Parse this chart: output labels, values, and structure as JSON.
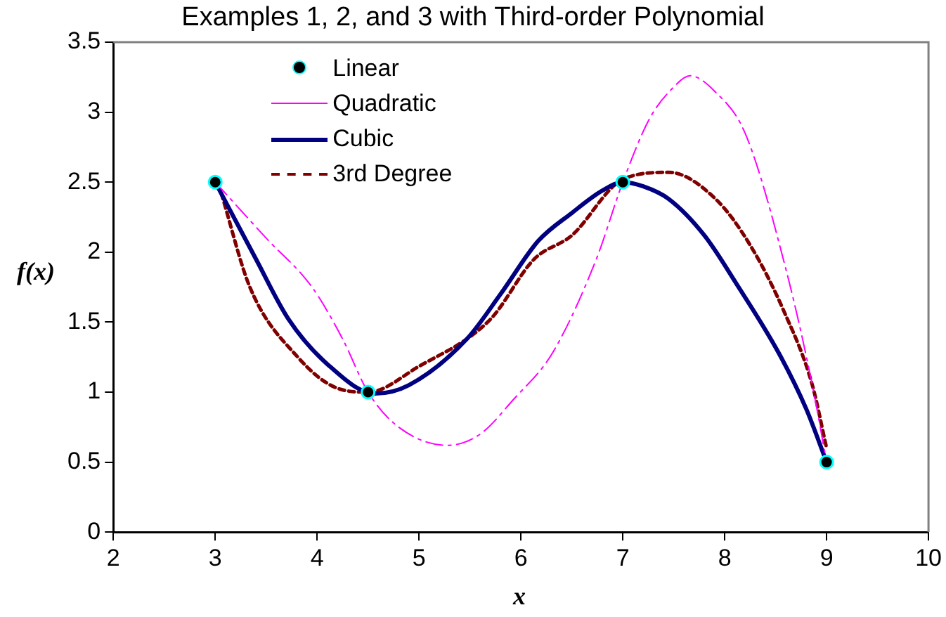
{
  "chart_data": {
    "type": "line",
    "title": "Examples 1, 2, and 3 with Third-order Polynomial",
    "xlabel": "x",
    "ylabel": "f(x)",
    "xlim": [
      2,
      10
    ],
    "xticks": [
      2,
      3,
      4,
      5,
      6,
      7,
      8,
      9,
      10
    ],
    "ylim": [
      0,
      3.5
    ],
    "yticks": [
      0,
      0.5,
      1,
      1.5,
      2,
      2.5,
      3,
      3.5
    ],
    "grid": false,
    "legend": "top left",
    "series": [
      {
        "name": "Linear",
        "type": "scatter",
        "marker": "circle",
        "color": "#000000",
        "x": [
          3,
          4.5,
          7,
          9
        ],
        "values": [
          2.5,
          1,
          2.5,
          0.5
        ]
      },
      {
        "name": "Quadratic",
        "type": "line",
        "marker": "none",
        "line_style": "dashed",
        "color": "#ff00ff",
        "x": [
          3,
          3.5,
          3.95,
          4.25,
          4.5,
          4.8,
          5.28,
          5.6,
          5.93,
          6.31,
          6.74,
          7,
          7.26,
          7.5,
          7.66,
          7.9,
          8.2,
          8.6,
          8.86,
          9
        ],
        "values": [
          2.5,
          2.1,
          1.75,
          1.38,
          1,
          0.75,
          0.62,
          0.7,
          0.95,
          1.28,
          1.95,
          2.5,
          2.95,
          3.18,
          3.26,
          3.15,
          2.85,
          1.88,
          1.05,
          0.5
        ]
      },
      {
        "name": "Cubic",
        "type": "line",
        "marker": "none",
        "line_style": "solid",
        "color": "#000080",
        "x": [
          3,
          3.4,
          3.72,
          4.1,
          4.57,
          4.9,
          5.47,
          5.8,
          6.17,
          6.5,
          6.8,
          7,
          7.2,
          7.45,
          7.8,
          8.11,
          8.53,
          8.8,
          9
        ],
        "values": [
          2.5,
          1.95,
          1.52,
          1.2,
          0.99,
          1.05,
          1.38,
          1.7,
          2.08,
          2.28,
          2.44,
          2.5,
          2.47,
          2.38,
          2.12,
          1.78,
          1.28,
          0.88,
          0.5
        ]
      },
      {
        "name": "3rd Degree",
        "type": "line",
        "marker": "none",
        "line_style": "dotted",
        "color": "#800000",
        "x": [
          3.06,
          3.34,
          3.81,
          4.19,
          4.5,
          4.99,
          5.7,
          6.13,
          6.5,
          7,
          7.45,
          7.91,
          8.25,
          8.58,
          8.86,
          9
        ],
        "values": [
          2.42,
          1.75,
          1.25,
          1.03,
          1,
          1.18,
          1.52,
          1.95,
          2.12,
          2.52,
          2.57,
          2.38,
          2.05,
          1.58,
          1.05,
          0.6
        ]
      }
    ]
  }
}
